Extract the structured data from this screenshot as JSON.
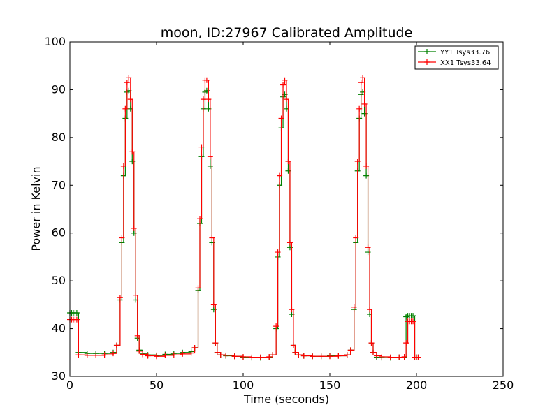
{
  "chart_data": {
    "type": "line",
    "title": "moon, ID:27967 Calibrated Amplitude",
    "xlabel": "Time (seconds)",
    "ylabel": "Power in Kelvin",
    "xlim": [
      0,
      250
    ],
    "ylim": [
      30,
      100
    ],
    "xticks": [
      "0",
      "50",
      "100",
      "150",
      "200",
      "250"
    ],
    "yticks": [
      "30",
      "40",
      "50",
      "60",
      "70",
      "80",
      "90",
      "100"
    ],
    "grid": false,
    "legend_position": "top-right",
    "series": [
      {
        "name": "YY1 Tsys33.76",
        "color": "#008000",
        "marker": "plus",
        "x": [
          0,
          1,
          2,
          3,
          4,
          5,
          10,
          15,
          20,
          25,
          27,
          29,
          30,
          31,
          32,
          33,
          34,
          35,
          36,
          37,
          38,
          39,
          40,
          42,
          45,
          50,
          55,
          60,
          65,
          70,
          72,
          74,
          75,
          76,
          77,
          78,
          79,
          80,
          81,
          82,
          83,
          84,
          85,
          87,
          90,
          95,
          100,
          105,
          110,
          115,
          117,
          119,
          120,
          121,
          122,
          123,
          124,
          125,
          126,
          127,
          128,
          129,
          130,
          132,
          135,
          140,
          145,
          150,
          155,
          160,
          162,
          164,
          165,
          166,
          167,
          168,
          169,
          170,
          171,
          172,
          173,
          174,
          175,
          177,
          180,
          185,
          190,
          193,
          194,
          195,
          196,
          197,
          198,
          199,
          200,
          201
        ],
        "y": [
          43.3,
          43.3,
          43.3,
          43.3,
          43.3,
          35.0,
          34.8,
          34.8,
          34.8,
          35.0,
          36.5,
          46.0,
          58.0,
          72.0,
          84.0,
          89.5,
          89.8,
          86.0,
          75.0,
          60.0,
          46.0,
          38.0,
          35.5,
          34.8,
          34.5,
          34.4,
          34.6,
          34.8,
          35.0,
          35.2,
          36.0,
          48.0,
          62.0,
          76.0,
          86.0,
          89.5,
          89.8,
          86.0,
          74.0,
          58.0,
          44.0,
          37.0,
          35.0,
          34.5,
          34.3,
          34.2,
          34.0,
          33.9,
          33.9,
          34.0,
          34.5,
          40.0,
          55.0,
          70.0,
          82.0,
          88.5,
          89.0,
          86.0,
          73.0,
          57.0,
          43.0,
          36.5,
          35.0,
          34.5,
          34.3,
          34.2,
          34.2,
          34.3,
          34.3,
          34.5,
          35.5,
          44.0,
          58.0,
          73.0,
          84.0,
          89.0,
          89.5,
          85.0,
          72.0,
          56.0,
          43.0,
          37.0,
          35.0,
          34.0,
          33.9,
          33.9,
          34.0,
          34.0,
          42.5,
          42.7,
          42.7,
          42.7,
          42.7,
          34.0,
          34.0,
          34.0
        ]
      },
      {
        "name": "XX1 Tsys33.64",
        "color": "#ff0000",
        "marker": "plus",
        "x": [
          0,
          1,
          2,
          3,
          4,
          5,
          10,
          15,
          20,
          25,
          27,
          29,
          30,
          31,
          32,
          33,
          34,
          35,
          36,
          37,
          38,
          39,
          40,
          42,
          45,
          50,
          55,
          60,
          65,
          70,
          72,
          74,
          75,
          76,
          77,
          78,
          79,
          80,
          81,
          82,
          83,
          84,
          85,
          87,
          90,
          95,
          100,
          105,
          110,
          115,
          117,
          119,
          120,
          121,
          122,
          123,
          124,
          125,
          126,
          127,
          128,
          129,
          130,
          132,
          135,
          140,
          145,
          150,
          155,
          160,
          162,
          164,
          165,
          166,
          167,
          168,
          169,
          170,
          171,
          172,
          173,
          174,
          175,
          177,
          180,
          185,
          190,
          193,
          194,
          195,
          196,
          197,
          198,
          199,
          200,
          201
        ],
        "y": [
          41.9,
          41.9,
          41.9,
          41.9,
          41.9,
          34.5,
          34.4,
          34.4,
          34.5,
          34.8,
          36.5,
          46.5,
          59.0,
          74.0,
          86.0,
          91.5,
          92.5,
          88.0,
          77.0,
          61.0,
          47.0,
          38.5,
          35.3,
          34.6,
          34.3,
          34.2,
          34.4,
          34.5,
          34.7,
          34.9,
          36.0,
          48.5,
          63.0,
          78.0,
          88.0,
          92.0,
          92.0,
          88.0,
          76.0,
          59.0,
          45.0,
          37.0,
          35.0,
          34.5,
          34.4,
          34.2,
          34.1,
          34.0,
          34.0,
          34.1,
          34.5,
          40.5,
          56.0,
          72.0,
          84.0,
          91.0,
          92.0,
          88.0,
          75.0,
          58.0,
          44.0,
          36.5,
          35.0,
          34.5,
          34.3,
          34.2,
          34.2,
          34.2,
          34.3,
          34.5,
          35.5,
          44.5,
          59.0,
          75.0,
          86.0,
          91.5,
          92.5,
          87.0,
          74.0,
          57.0,
          44.0,
          37.0,
          35.0,
          34.3,
          34.1,
          34.0,
          34.0,
          34.1,
          37.0,
          41.5,
          41.5,
          41.5,
          41.5,
          34.0,
          34.0,
          34.0
        ]
      }
    ]
  }
}
